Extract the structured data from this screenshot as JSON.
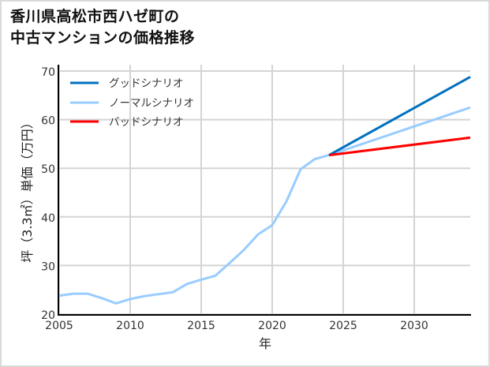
{
  "title": {
    "line1": "香川県高松市西ハゼ町の",
    "line2": "中古マンションの価格推移"
  },
  "chart_data": {
    "type": "line",
    "title": "香川県高松市西ハゼ町の中古マンションの価格推移",
    "xlabel": "年",
    "ylabel": "坪（3.3㎡）単価（万円）",
    "xlim": [
      2005,
      2034
    ],
    "ylim": [
      20,
      70
    ],
    "xticks": [
      2005,
      2010,
      2015,
      2020,
      2025,
      2030
    ],
    "yticks": [
      20,
      30,
      40,
      50,
      60,
      70
    ],
    "grid": true,
    "legend_position": "upper left",
    "series": [
      {
        "name": "グッドシナリオ",
        "color": "#0070c0",
        "x": [
          2024,
          2034
        ],
        "values": [
          52.7,
          68.8
        ]
      },
      {
        "name": "ノーマルシナリオ",
        "color": "#99ccff",
        "x": [
          2005,
          2006,
          2007,
          2008,
          2009,
          2010,
          2011,
          2012,
          2013,
          2014,
          2015,
          2016,
          2017,
          2018,
          2019,
          2020,
          2021,
          2022,
          2023,
          2024,
          2034
        ],
        "values": [
          23.8,
          24.2,
          24.2,
          23.3,
          22.2,
          23.1,
          23.7,
          24.1,
          24.5,
          26.2,
          27.1,
          27.9,
          30.5,
          33.2,
          36.4,
          38.3,
          43.2,
          49.8,
          51.9,
          52.7,
          62.5
        ]
      },
      {
        "name": "バッドシナリオ",
        "color": "#ff0000",
        "x": [
          2024,
          2034
        ],
        "values": [
          52.7,
          56.3
        ]
      }
    ]
  },
  "legend": {
    "good": "グッドシナリオ",
    "normal": "ノーマルシナリオ",
    "bad": "バッドシナリオ"
  },
  "axes": {
    "xlabel": "年",
    "ylabel": "坪（3.3㎡）単価（万円）",
    "xticks": [
      "2005",
      "2010",
      "2015",
      "2020",
      "2025",
      "2030"
    ],
    "yticks": [
      "20",
      "30",
      "40",
      "50",
      "60",
      "70"
    ]
  }
}
